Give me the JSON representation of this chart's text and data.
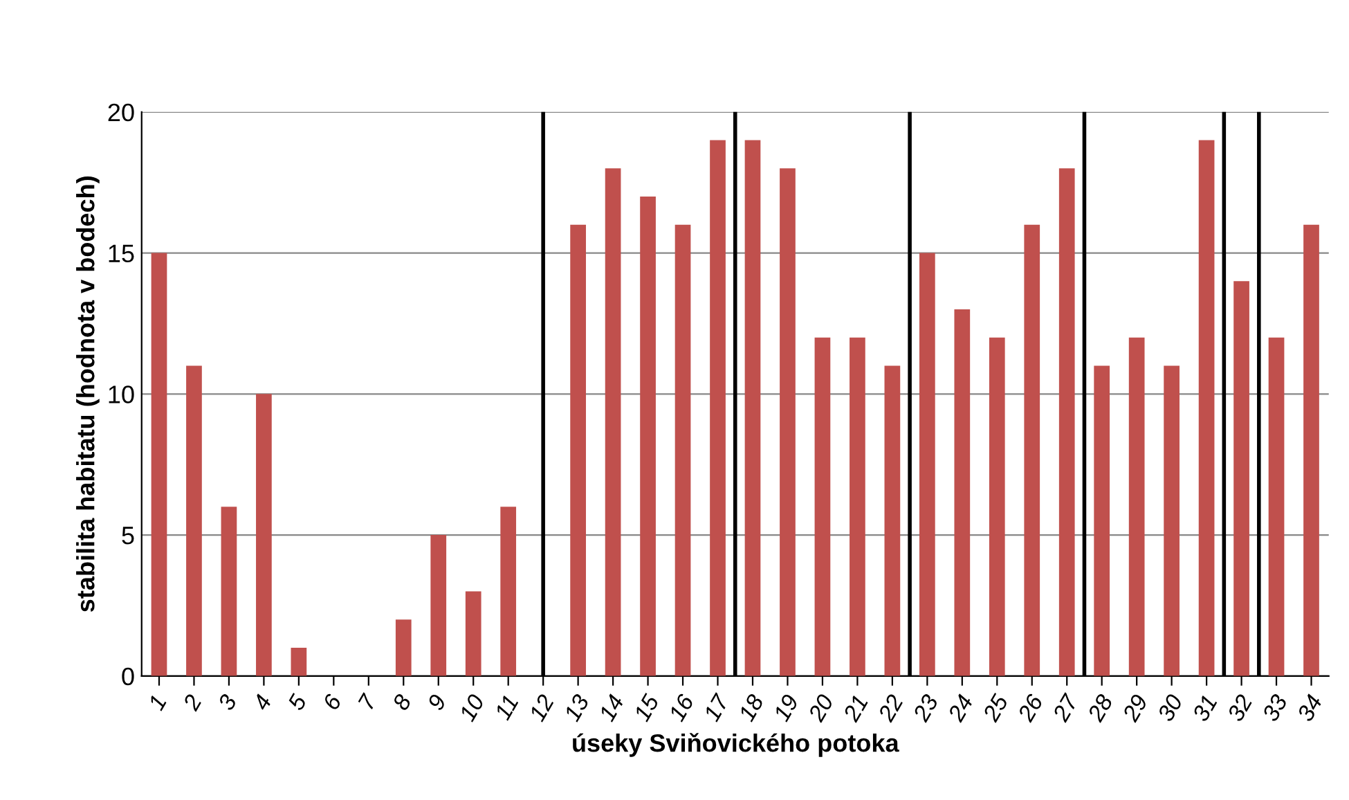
{
  "chart_data": {
    "type": "bar",
    "xlabel": "úseky Sviňovického potoka",
    "ylabel": "stabilita habitatu (hodnota v bodech)",
    "x": [
      1,
      2,
      3,
      4,
      5,
      6,
      7,
      8,
      9,
      10,
      11,
      12,
      13,
      14,
      15,
      16,
      17,
      18,
      19,
      20,
      21,
      22,
      23,
      24,
      25,
      26,
      27,
      28,
      29,
      30,
      31,
      32,
      33,
      34
    ],
    "values": [
      15,
      11,
      6,
      10,
      1,
      0,
      0,
      2,
      5,
      3,
      6,
      0,
      16,
      18,
      17,
      16,
      19,
      19,
      18,
      12,
      12,
      11,
      15,
      13,
      12,
      16,
      18,
      11,
      12,
      11,
      19,
      14,
      12,
      16
    ],
    "color": "#c0504d",
    "xlim": [
      0.5,
      34.5
    ],
    "xticks": [
      1,
      2,
      3,
      4,
      5,
      6,
      7,
      8,
      9,
      10,
      11,
      12,
      13,
      14,
      15,
      16,
      17,
      18,
      19,
      20,
      21,
      22,
      23,
      24,
      25,
      26,
      27,
      28,
      29,
      30,
      31,
      32,
      33,
      34
    ],
    "ylim": [
      0,
      20
    ],
    "yticks": [
      0,
      5,
      10,
      15,
      20
    ],
    "grid": "y",
    "ref_lines": [
      {
        "axis": "x",
        "value": 12,
        "color": "#000000"
      },
      {
        "axis": "x",
        "value": 17.5,
        "color": "#000000"
      },
      {
        "axis": "x",
        "value": 22.5,
        "color": "#000000"
      },
      {
        "axis": "x",
        "value": 27.5,
        "color": "#000000"
      },
      {
        "axis": "x",
        "value": 31.5,
        "color": "#000000"
      },
      {
        "axis": "x",
        "value": 32.5,
        "color": "#000000"
      }
    ]
  }
}
